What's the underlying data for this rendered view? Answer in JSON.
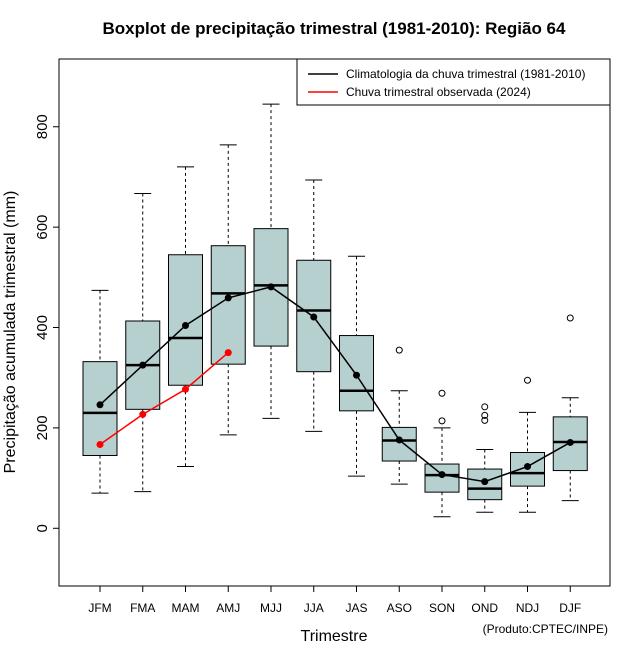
{
  "chart_data": {
    "type": "boxplot",
    "title": "Boxplot de precipitação trimestral (1981-2010): Região 64",
    "xlabel": "Trimestre",
    "ylabel": "Precipitação acumulada trimestral (mm)",
    "credit": "(Produto:CPTEC/INPE)",
    "ylim": [
      -115,
      935
    ],
    "yticks": [
      0,
      200,
      400,
      600,
      800
    ],
    "categories": [
      "JFM",
      "FMA",
      "MAM",
      "AMJ",
      "MJJ",
      "JJA",
      "JAS",
      "ASO",
      "SON",
      "OND",
      "NDJ",
      "DJF"
    ],
    "boxes": [
      {
        "whisker_low": 70,
        "q1": 145,
        "median": 230,
        "q3": 332,
        "whisker_high": 474,
        "outliers": []
      },
      {
        "whisker_low": 73,
        "q1": 237,
        "median": 325,
        "q3": 413,
        "whisker_high": 667,
        "outliers": []
      },
      {
        "whisker_low": 123,
        "q1": 285,
        "median": 379,
        "q3": 545,
        "whisker_high": 720,
        "outliers": []
      },
      {
        "whisker_low": 186,
        "q1": 327,
        "median": 468,
        "q3": 563,
        "whisker_high": 764,
        "outliers": []
      },
      {
        "whisker_low": 219,
        "q1": 363,
        "median": 484,
        "q3": 597,
        "whisker_high": 845,
        "outliers": []
      },
      {
        "whisker_low": 193,
        "q1": 312,
        "median": 434,
        "q3": 534,
        "whisker_high": 694,
        "outliers": []
      },
      {
        "whisker_low": 104,
        "q1": 234,
        "median": 274,
        "q3": 384,
        "whisker_high": 542,
        "outliers": []
      },
      {
        "whisker_low": 88,
        "q1": 134,
        "median": 175,
        "q3": 201,
        "whisker_high": 274,
        "outliers": [
          355
        ]
      },
      {
        "whisker_low": 23,
        "q1": 72,
        "median": 106,
        "q3": 128,
        "whisker_high": 200,
        "outliers": [
          214,
          269
        ]
      },
      {
        "whisker_low": 32,
        "q1": 57,
        "median": 79,
        "q3": 118,
        "whisker_high": 157,
        "outliers": [
          215,
          225,
          242
        ]
      },
      {
        "whisker_low": 32,
        "q1": 84,
        "median": 110,
        "q3": 151,
        "whisker_high": 231,
        "outliers": [
          295
        ]
      },
      {
        "whisker_low": 55,
        "q1": 115,
        "median": 172,
        "q3": 222,
        "whisker_high": 260,
        "outliers": [
          419
        ]
      }
    ],
    "series": [
      {
        "name": "Climatologia da chuva trimestral (1981-2010)",
        "color": "#000000",
        "values": [
          246,
          325,
          404,
          459,
          481,
          421,
          305,
          176,
          107,
          93,
          123,
          171
        ]
      },
      {
        "name": "Chuva trimestral observada (2024)",
        "color": "#ff0000",
        "values": [
          167,
          227,
          277,
          350,
          null,
          null,
          null,
          null,
          null,
          null,
          null,
          null
        ]
      }
    ],
    "box_fill": "#b6cfcf",
    "legend_position": "top-right"
  }
}
